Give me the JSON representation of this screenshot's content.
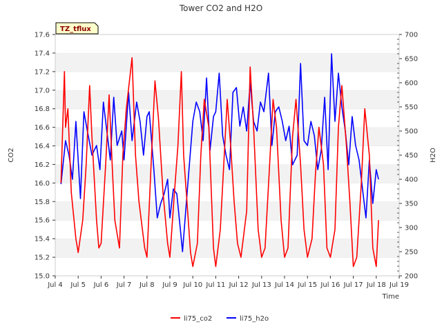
{
  "chart_data": {
    "type": "line",
    "title": "Tower CO2 and H2O",
    "tag": "TZ_tflux",
    "xlabel": "Time",
    "ylabel_left": "CO2",
    "ylabel_right": "H2O",
    "x_ticks": [
      "Jul 4",
      "Jul 5",
      "Jul 6",
      "Jul 7",
      "Jul 8",
      "Jul 9",
      "Jul 10",
      "Jul 11",
      "Jul 12",
      "Jul 13",
      "Jul 14",
      "Jul 15",
      "Jul 16",
      "Jul 17",
      "Jul 18",
      "Jul 19"
    ],
    "xlim_days": [
      4,
      19
    ],
    "ylim_left": [
      15.0,
      17.6
    ],
    "y_ticks_left": [
      "15.0",
      "15.2",
      "15.4",
      "15.6",
      "15.8",
      "16.0",
      "16.2",
      "16.4",
      "16.6",
      "16.8",
      "17.0",
      "17.2",
      "17.4",
      "17.6"
    ],
    "ylim_right": [
      200,
      700
    ],
    "y_ticks_right": [
      "200",
      "250",
      "300",
      "350",
      "400",
      "450",
      "500",
      "550",
      "600",
      "650",
      "700"
    ],
    "grid": "horizontal bands",
    "legend_position": "bottom-center",
    "colors": {
      "co2": "#ff0000",
      "h2o": "#0000ff"
    },
    "series": [
      {
        "name": "li75_co2",
        "axis": "left",
        "x_day": [
          4.25,
          4.4,
          4.45,
          4.55,
          4.7,
          4.9,
          5.0,
          5.2,
          5.35,
          5.5,
          5.6,
          5.8,
          5.9,
          6.0,
          6.2,
          6.35,
          6.5,
          6.6,
          6.8,
          6.95,
          7.1,
          7.35,
          7.5,
          7.65,
          7.9,
          8.0,
          8.2,
          8.35,
          8.5,
          8.7,
          8.9,
          9.0,
          9.2,
          9.35,
          9.5,
          9.6,
          9.8,
          9.9,
          10.0,
          10.2,
          10.35,
          10.5,
          10.7,
          10.9,
          11.0,
          11.2,
          11.35,
          11.5,
          11.65,
          11.8,
          11.95,
          12.1,
          12.35,
          12.5,
          12.65,
          12.85,
          13.0,
          13.15,
          13.35,
          13.5,
          13.65,
          13.85,
          14.0,
          14.15,
          14.35,
          14.5,
          14.7,
          14.85,
          15.0,
          15.2,
          15.35,
          15.5,
          15.7,
          15.85,
          16.0,
          16.2,
          16.35,
          16.5,
          16.7,
          16.85,
          17.0,
          17.15,
          17.35,
          17.5,
          17.7,
          17.85,
          18.0,
          18.1
        ],
        "values": [
          16.0,
          17.2,
          16.6,
          16.8,
          15.9,
          15.4,
          15.25,
          15.6,
          16.2,
          17.05,
          16.5,
          15.6,
          15.3,
          15.35,
          16.2,
          16.95,
          16.1,
          15.6,
          15.3,
          16.3,
          16.8,
          17.35,
          16.3,
          15.8,
          15.3,
          15.2,
          16.3,
          17.1,
          16.7,
          15.9,
          15.35,
          15.2,
          15.9,
          16.4,
          17.2,
          16.3,
          15.6,
          15.25,
          15.1,
          15.35,
          16.3,
          16.9,
          16.6,
          15.3,
          15.1,
          15.5,
          16.2,
          16.9,
          16.4,
          15.8,
          15.35,
          15.2,
          15.7,
          17.25,
          16.6,
          15.5,
          15.2,
          15.3,
          16.2,
          16.9,
          16.6,
          15.6,
          15.2,
          15.3,
          16.5,
          16.9,
          16.2,
          15.5,
          15.2,
          15.4,
          16.1,
          16.6,
          16.2,
          15.3,
          15.2,
          15.5,
          16.6,
          17.05,
          16.4,
          15.8,
          15.1,
          15.2,
          16.0,
          16.8,
          16.3,
          15.3,
          15.1,
          15.6
        ]
      },
      {
        "name": "li75_h2o",
        "axis": "right",
        "x_day": [
          4.25,
          4.45,
          4.6,
          4.75,
          4.9,
          5.1,
          5.25,
          5.4,
          5.6,
          5.8,
          5.95,
          6.1,
          6.2,
          6.4,
          6.55,
          6.7,
          6.9,
          7.0,
          7.2,
          7.35,
          7.55,
          7.7,
          7.85,
          8.0,
          8.1,
          8.3,
          8.45,
          8.6,
          8.75,
          8.9,
          9.0,
          9.15,
          9.3,
          9.45,
          9.55,
          9.7,
          9.85,
          10.0,
          10.15,
          10.3,
          10.45,
          10.6,
          10.75,
          10.9,
          11.0,
          11.15,
          11.3,
          11.45,
          11.6,
          11.75,
          11.9,
          12.05,
          12.2,
          12.35,
          12.5,
          12.65,
          12.8,
          12.95,
          13.1,
          13.3,
          13.45,
          13.6,
          13.75,
          13.9,
          14.05,
          14.2,
          14.35,
          14.55,
          14.7,
          14.85,
          15.0,
          15.15,
          15.3,
          15.45,
          15.6,
          15.75,
          15.9,
          16.05,
          16.2,
          16.35,
          16.5,
          16.65,
          16.8,
          16.95,
          17.1,
          17.25,
          17.4,
          17.55,
          17.7,
          17.85,
          18.0,
          18.1
        ],
        "values": [
          390,
          480,
          450,
          400,
          520,
          360,
          540,
          500,
          450,
          470,
          420,
          560,
          520,
          440,
          570,
          470,
          500,
          440,
          580,
          480,
          560,
          520,
          450,
          530,
          540,
          420,
          320,
          350,
          370,
          400,
          320,
          380,
          370,
          300,
          250,
          340,
          430,
          520,
          560,
          540,
          480,
          610,
          460,
          530,
          540,
          620,
          490,
          450,
          420,
          580,
          590,
          510,
          550,
          500,
          600,
          520,
          500,
          560,
          540,
          620,
          470,
          540,
          550,
          520,
          480,
          510,
          430,
          450,
          640,
          480,
          470,
          520,
          490,
          420,
          460,
          570,
          420,
          660,
          520,
          620,
          550,
          500,
          430,
          530,
          470,
          440,
          380,
          320,
          440,
          350,
          420,
          400
        ]
      }
    ]
  }
}
